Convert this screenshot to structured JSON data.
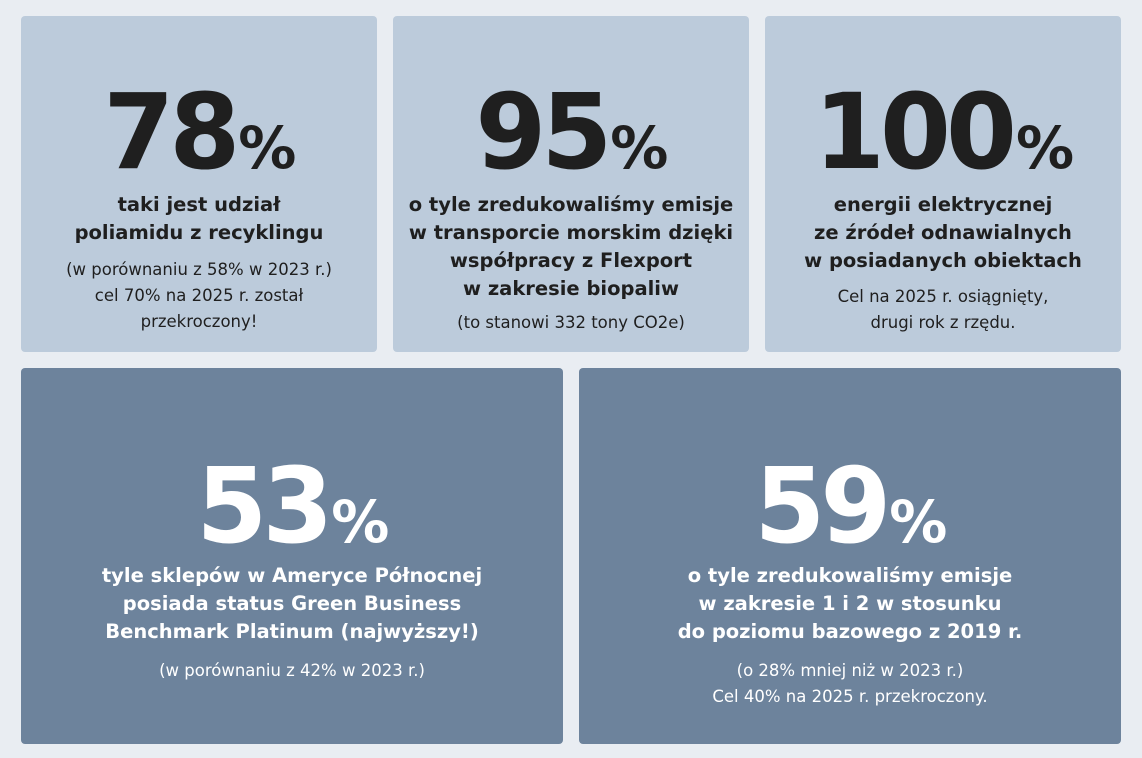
{
  "cards": [
    {
      "value": "78",
      "unit": "%",
      "headline": [
        "taki jest udział",
        "poliamidu z recyklingu"
      ],
      "note": [
        "(w porównaniu z 58% w 2023 r.)",
        "cel 70% na 2025 r. został",
        "przekroczony!"
      ]
    },
    {
      "value": "95",
      "unit": "%",
      "headline": [
        "o tyle zredukowaliśmy emisje",
        "w transporcie morskim dzięki",
        "współpracy z Flexport",
        "w zakresie biopaliw"
      ],
      "note": [
        "(to stanowi 332 tony CO2e)"
      ]
    },
    {
      "value": "100",
      "unit": "%",
      "headline": [
        "energii elektrycznej",
        "ze źródeł odnawialnych",
        "w posiadanych obiektach"
      ],
      "note": [
        "Cel na 2025 r. osiągnięty,",
        "drugi rok z rzędu."
      ]
    },
    {
      "value": "53",
      "unit": "%",
      "headline": [
        "tyle sklepów w Ameryce Północnej",
        "posiada status Green Business",
        "Benchmark Platinum (najwyższy!)"
      ],
      "note": [
        "(w porównaniu z 42% w 2023 r.)"
      ]
    },
    {
      "value": "59",
      "unit": "%",
      "headline": [
        "o tyle zredukowaliśmy emisje",
        "w zakresie 1 i 2 w stosunku",
        "do poziomu bazowego z 2019 r."
      ],
      "note": [
        "(o 28% mniej niż w 2023 r.)",
        "Cel 40% na 2025 r. przekroczony."
      ]
    }
  ],
  "colors": {
    "background": "#e9edf2",
    "light_card": "#bccbdb",
    "dark_card": "#6d839c",
    "dark_text": "#1f1f1f",
    "light_text": "#ffffff"
  }
}
